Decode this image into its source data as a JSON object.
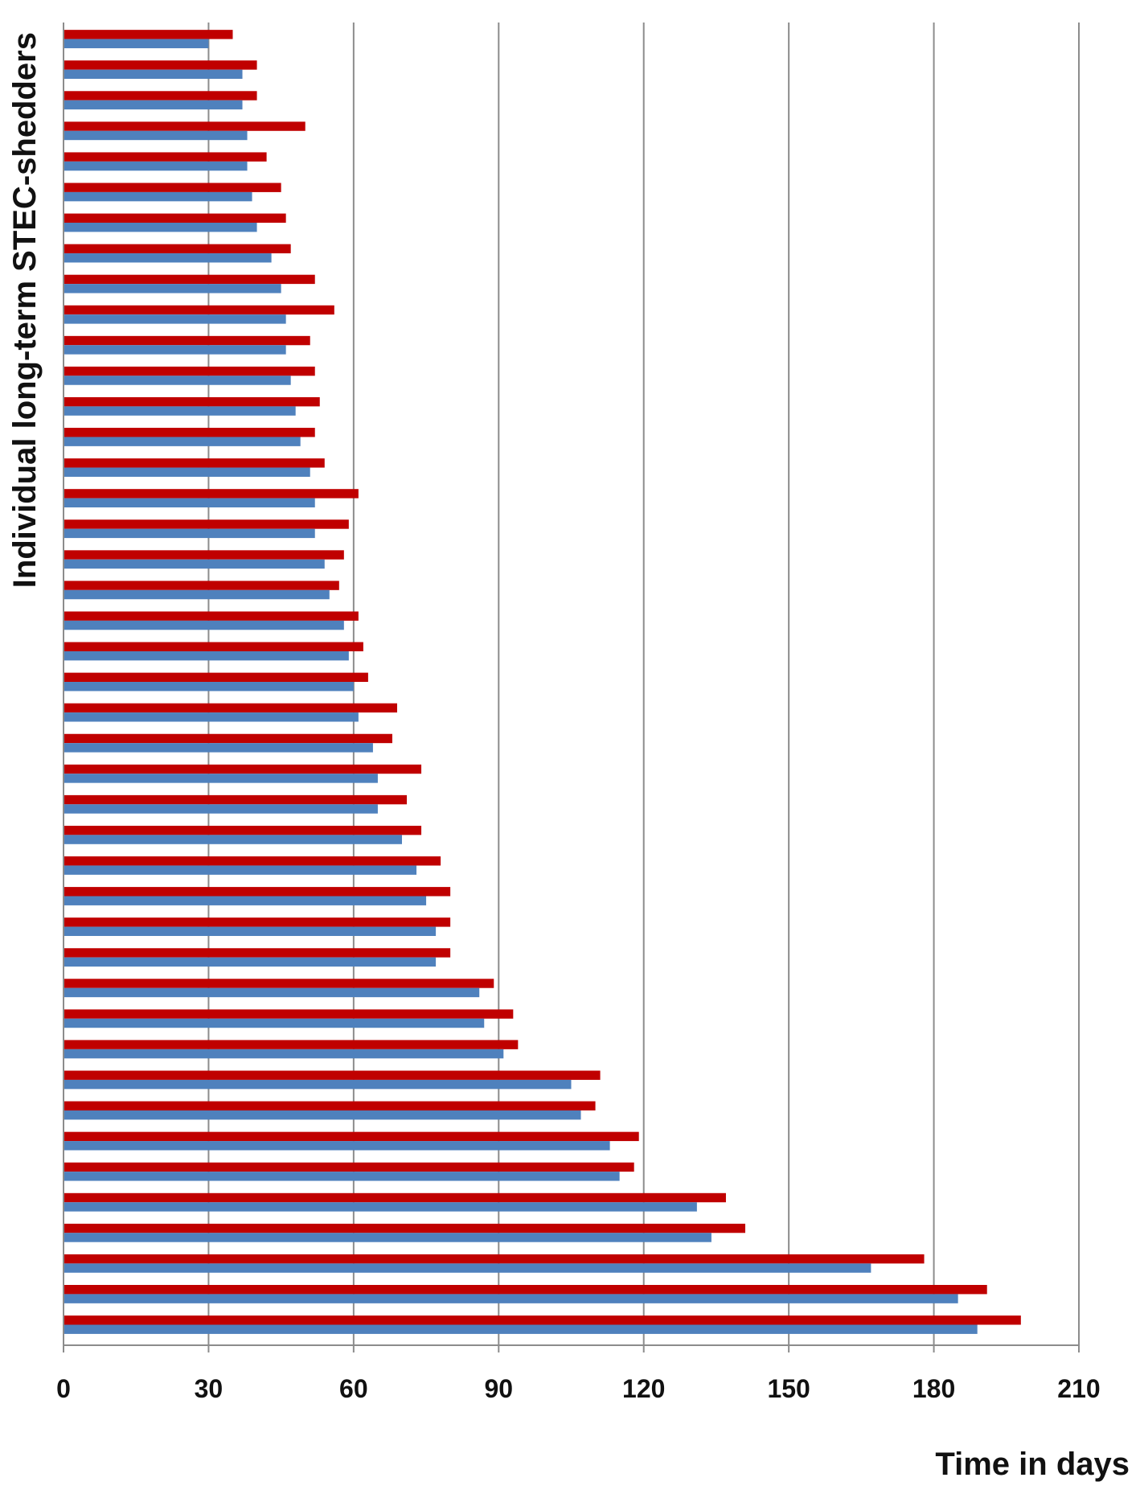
{
  "chart_data": {
    "type": "bar",
    "orientation": "horizontal",
    "xlabel": "Time in days",
    "ylabel": "Individual long-term STEC-shedders",
    "xlim": [
      0,
      210
    ],
    "x_ticks": [
      "0",
      "30",
      "60",
      "90",
      "120",
      "150",
      "180",
      "210"
    ],
    "grid": "vertical",
    "colors": {
      "series_1": "#4F81BD",
      "series_2": "#C00000"
    },
    "series": [
      {
        "values": [
          30,
          37,
          37,
          38,
          38,
          39,
          40,
          43,
          45,
          46,
          46,
          47,
          48,
          49,
          51,
          52,
          52,
          54,
          55,
          58,
          59,
          60,
          61,
          64,
          65,
          65,
          70,
          73,
          75,
          77,
          77,
          86,
          87,
          91,
          105,
          107,
          113,
          115,
          131,
          134,
          167,
          185,
          189
        ]
      },
      {
        "values": [
          35,
          40,
          40,
          50,
          42,
          45,
          46,
          47,
          52,
          56,
          51,
          52,
          53,
          52,
          54,
          61,
          59,
          58,
          57,
          61,
          62,
          63,
          69,
          68,
          74,
          71,
          74,
          78,
          80,
          80,
          80,
          89,
          93,
          94,
          111,
          110,
          119,
          118,
          137,
          141,
          178,
          191,
          198
        ]
      }
    ]
  }
}
